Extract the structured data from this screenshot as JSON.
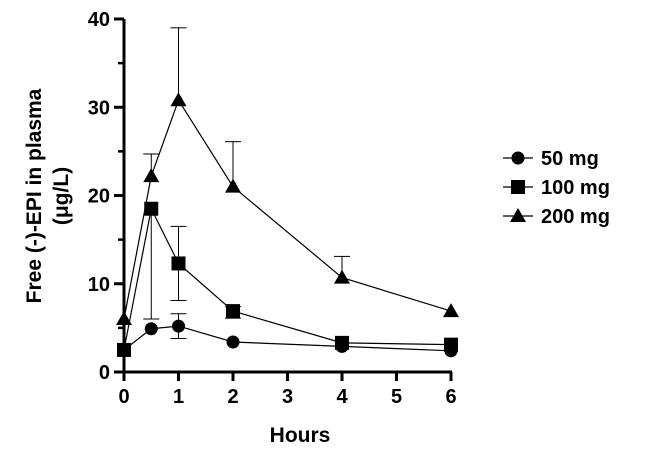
{
  "chart_data": {
    "type": "line",
    "title": "",
    "xlabel": "Hours",
    "ylabel_line1": "Free (-)-EPI in plasma",
    "ylabel_line2": "(μg/L)",
    "xlim": [
      0,
      6
    ],
    "ylim": [
      0,
      40
    ],
    "x_ticks": [
      0,
      1,
      2,
      3,
      4,
      5,
      6
    ],
    "y_ticks": [
      0,
      10,
      20,
      30,
      40
    ],
    "grid": false,
    "legend_position": "right",
    "series": [
      {
        "name": "50 mg",
        "marker": "circle",
        "x": [
          0,
          0.5,
          1,
          2,
          4,
          6
        ],
        "y": [
          2.5,
          4.9,
          5.2,
          3.4,
          2.9,
          2.4
        ],
        "error_upper": [
          null,
          null,
          6.6,
          null,
          null,
          null
        ],
        "error_lower": [
          null,
          null,
          3.8,
          null,
          null,
          null
        ]
      },
      {
        "name": "100 mg",
        "marker": "square",
        "x": [
          0,
          0.5,
          1,
          2,
          4,
          6
        ],
        "y": [
          2.5,
          18.5,
          12.3,
          6.9,
          3.3,
          3.1
        ],
        "error_upper": [
          null,
          null,
          16.5,
          7.4,
          null,
          null
        ],
        "error_lower": [
          null,
          6.0,
          8.1,
          6.1,
          null,
          null
        ]
      },
      {
        "name": "200 mg",
        "marker": "triangle",
        "x": [
          0,
          0.5,
          1,
          2,
          4,
          6
        ],
        "y": [
          6.0,
          22.2,
          30.8,
          21.0,
          10.7,
          6.9
        ],
        "error_upper": [
          null,
          24.7,
          39.0,
          26.1,
          13.1,
          null
        ],
        "error_lower": [
          null,
          null,
          null,
          null,
          null,
          null
        ]
      }
    ],
    "colors": {
      "line": "#000000",
      "marker": "#000000"
    }
  }
}
